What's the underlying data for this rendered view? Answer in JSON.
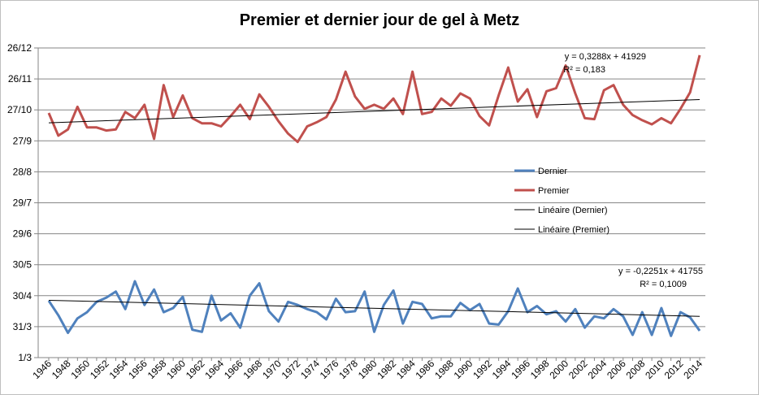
{
  "chart_data": {
    "type": "line",
    "title": "Premier et dernier jour de gel à Metz",
    "xlabel": "",
    "ylabel": "",
    "x": [
      1946,
      1947,
      1948,
      1949,
      1950,
      1951,
      1952,
      1953,
      1954,
      1955,
      1956,
      1957,
      1958,
      1959,
      1960,
      1961,
      1962,
      1963,
      1964,
      1965,
      1966,
      1967,
      1968,
      1969,
      1970,
      1971,
      1972,
      1973,
      1974,
      1975,
      1976,
      1977,
      1978,
      1979,
      1980,
      1981,
      1982,
      1983,
      1984,
      1985,
      1986,
      1987,
      1988,
      1989,
      1990,
      1991,
      1992,
      1993,
      1994,
      1995,
      1996,
      1997,
      1998,
      1999,
      2000,
      2001,
      2002,
      2003,
      2004,
      2005,
      2006,
      2007,
      2008,
      2009,
      2010,
      2011,
      2012,
      2013,
      2014
    ],
    "xticks": [
      "1946",
      "1948",
      "1950",
      "1952",
      "1954",
      "1956",
      "1958",
      "1960",
      "1962",
      "1964",
      "1966",
      "1968",
      "1970",
      "1972",
      "1974",
      "1976",
      "1978",
      "1980",
      "1982",
      "1984",
      "1986",
      "1988",
      "1990",
      "1992",
      "1994",
      "1996",
      "1998",
      "2000",
      "2002",
      "2004",
      "2006",
      "2008",
      "2010",
      "2012",
      "2014"
    ],
    "yticks": [
      {
        "label": "26/12",
        "day": 360
      },
      {
        "label": "26/11",
        "day": 330
      },
      {
        "label": "27/10",
        "day": 300
      },
      {
        "label": "27/9",
        "day": 270
      },
      {
        "label": "28/8",
        "day": 240
      },
      {
        "label": "29/7",
        "day": 210
      },
      {
        "label": "29/6",
        "day": 180
      },
      {
        "label": "30/5",
        "day": 150
      },
      {
        "label": "30/4",
        "day": 120
      },
      {
        "label": "31/3",
        "day": 90
      },
      {
        "label": "1/3",
        "day": 60
      }
    ],
    "ylim": [
      60,
      360
    ],
    "grid": true,
    "legend_position": "right-center",
    "series": [
      {
        "name": "Dernier",
        "color": "#4f81bd",
        "values": [
          115,
          101,
          84,
          98,
          104,
          114,
          118,
          124,
          107,
          134,
          111,
          126,
          104,
          108,
          119,
          87,
          85,
          120,
          96,
          103,
          89,
          120,
          132,
          105,
          95,
          114,
          111,
          107,
          104,
          97,
          117,
          104,
          105,
          124,
          85,
          111,
          125,
          93,
          114,
          112,
          98,
          100,
          100,
          113,
          106,
          112,
          93,
          92,
          105,
          127,
          104,
          110,
          102,
          105,
          95,
          107,
          89,
          100,
          98,
          107,
          100,
          82,
          104,
          82,
          108,
          81,
          104,
          99,
          86
        ]
      },
      {
        "name": "Premier",
        "color": "#c0504d",
        "values": [
          297,
          275,
          281,
          303,
          283,
          283,
          280,
          281,
          298,
          292,
          305,
          272,
          324,
          293,
          314,
          292,
          287,
          287,
          284,
          294,
          305,
          291,
          315,
          303,
          289,
          277,
          269,
          284,
          288,
          293,
          310,
          337,
          313,
          301,
          305,
          301,
          311,
          296,
          337,
          296,
          298,
          311,
          304,
          316,
          311,
          294,
          285,
          314,
          341,
          308,
          320,
          293,
          318,
          321,
          343,
          316,
          292,
          291,
          319,
          324,
          305,
          295,
          290,
          286,
          292,
          287,
          301,
          317,
          353
        ]
      }
    ],
    "trendlines": [
      {
        "name": "Linéaire (Dernier)",
        "color": "#000000",
        "start": 115.5,
        "end": 100.0,
        "equation": "y = -0,2251x + 41755",
        "r2": "R² = 0,1009"
      },
      {
        "name": "Linéaire (Premier)",
        "color": "#000000",
        "start": 287.5,
        "end": 310.0,
        "equation": "y = 0,3288x + 41929",
        "r2": "R² = 0,183"
      }
    ]
  }
}
